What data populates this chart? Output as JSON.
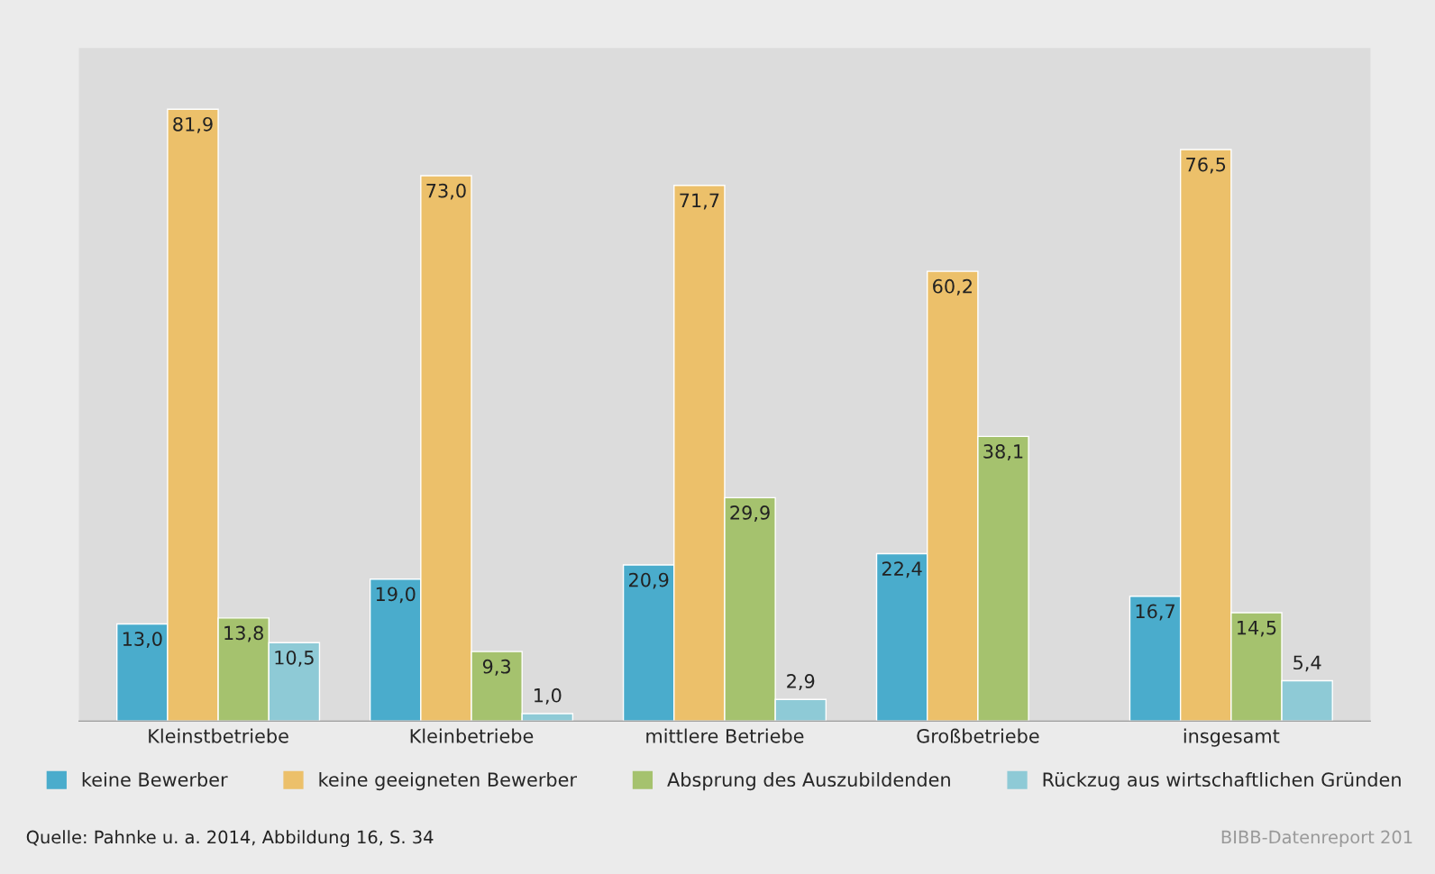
{
  "chart_data": {
    "type": "bar",
    "categories": [
      "Kleinstbetriebe",
      "Kleinbetriebe",
      "mittlere Betriebe",
      "Großbetriebe",
      "insgesamt"
    ],
    "series": [
      {
        "name": "keine Bewerber",
        "color": "#4aaccc",
        "values": [
          13.0,
          19.0,
          20.9,
          22.4,
          16.7
        ],
        "value_labels": [
          "13,0",
          "19,0",
          "20,9",
          "22,4",
          "16,7"
        ]
      },
      {
        "name": "keine geeigneten Bewerber",
        "color": "#ecc06a",
        "values": [
          81.9,
          73.0,
          71.7,
          60.2,
          76.5
        ],
        "value_labels": [
          "81,9",
          "73,0",
          "71,7",
          "60,2",
          "76,5"
        ]
      },
      {
        "name": "Absprung des Auszubildenden",
        "color": "#a5c26e",
        "values": [
          13.8,
          9.3,
          29.9,
          38.1,
          14.5
        ],
        "value_labels": [
          "13,8",
          "9,3",
          "29,9",
          "38,1",
          "14,5"
        ]
      },
      {
        "name": "Rückzug aus wirtschaftlichen Gründen",
        "color": "#8ecad6",
        "values": [
          10.5,
          1.0,
          2.9,
          null,
          5.4
        ],
        "value_labels": [
          "10,5",
          "1,0",
          "2,9",
          null,
          "5,4"
        ]
      }
    ],
    "legend": "bottom",
    "grid": false,
    "annotations": [
      "Quelle: Pahnke u. a. 2014, Abbildung 16, S. 34",
      "BIBB-Datenreport 201"
    ]
  }
}
